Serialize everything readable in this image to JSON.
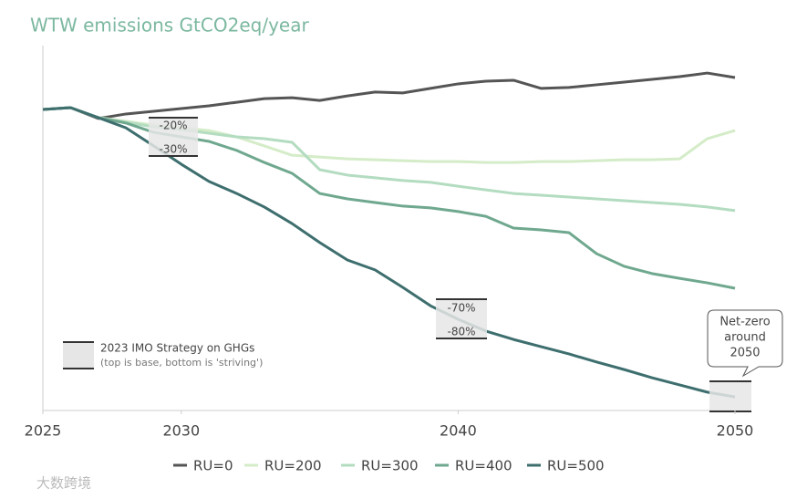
{
  "chart_data": {
    "type": "line",
    "title": "WTW emissions GtCO2eq/year",
    "x": [
      2025,
      2026,
      2027,
      2028,
      2029,
      2030,
      2031,
      2032,
      2033,
      2034,
      2035,
      2036,
      2037,
      2038,
      2039,
      2040,
      2041,
      2042,
      2043,
      2044,
      2045,
      2046,
      2047,
      2048,
      2049,
      2050
    ],
    "xlim": [
      2025,
      2050
    ],
    "xticks": [
      2025,
      2030,
      2040,
      2050
    ],
    "ylim": [
      0,
      120
    ],
    "series": [
      {
        "name": "RU=0",
        "color": "#555555",
        "values": [
          100,
          100.6,
          97.0,
          98.5,
          99.4,
          100.3,
          101.2,
          102.4,
          103.6,
          103.9,
          103.0,
          104.5,
          105.8,
          105.5,
          107.0,
          108.5,
          109.4,
          109.7,
          107.0,
          107.3,
          108.2,
          109.1,
          110.0,
          110.9,
          112.1,
          110.6
        ]
      },
      {
        "name": "RU=200",
        "color": "#d4ecc8",
        "values": [
          100,
          100.6,
          97.3,
          96.1,
          94.8,
          93.9,
          93.0,
          90.9,
          87.9,
          84.8,
          84.2,
          83.6,
          83.3,
          83.0,
          82.7,
          82.7,
          82.4,
          82.4,
          82.7,
          82.7,
          83.0,
          83.3,
          83.3,
          83.6,
          90.3,
          93.0
        ]
      },
      {
        "name": "RU=300",
        "color": "#b3dcc0",
        "values": [
          100,
          100.6,
          97.3,
          95.8,
          94.2,
          93.3,
          92.1,
          90.9,
          90.3,
          89.1,
          80.0,
          78.2,
          77.3,
          76.4,
          75.8,
          74.5,
          73.3,
          72.1,
          71.5,
          70.9,
          70.3,
          69.7,
          69.1,
          68.5,
          67.6,
          66.4
        ]
      },
      {
        "name": "RU=400",
        "color": "#6fa88f",
        "values": [
          100,
          100.6,
          97.3,
          95.5,
          92.4,
          90.9,
          89.4,
          86.4,
          82.4,
          78.8,
          72.1,
          70.3,
          69.1,
          67.9,
          67.3,
          66.1,
          64.5,
          60.6,
          60.0,
          59.1,
          52.1,
          47.9,
          45.5,
          43.9,
          42.4,
          40.6
        ]
      },
      {
        "name": "RU=500",
        "color": "#3e6e6e",
        "values": [
          100,
          100.6,
          97.3,
          93.9,
          87.9,
          81.8,
          76.1,
          72.1,
          67.6,
          62.1,
          55.8,
          50.0,
          46.7,
          40.9,
          34.8,
          30.3,
          26.4,
          23.6,
          21.2,
          18.8,
          16.1,
          13.6,
          10.9,
          8.5,
          6.1,
          4.5
        ]
      }
    ]
  },
  "annotations": {
    "imo_labels": [
      "-20%",
      "-30%",
      "-70%",
      "-80%"
    ],
    "legend_note": [
      "2023 IMO Strategy on GHGs",
      "(top is base, bottom is 'striving')"
    ],
    "callout": [
      "Net-zero",
      "around",
      "2050"
    ]
  },
  "watermark": "大数跨境"
}
